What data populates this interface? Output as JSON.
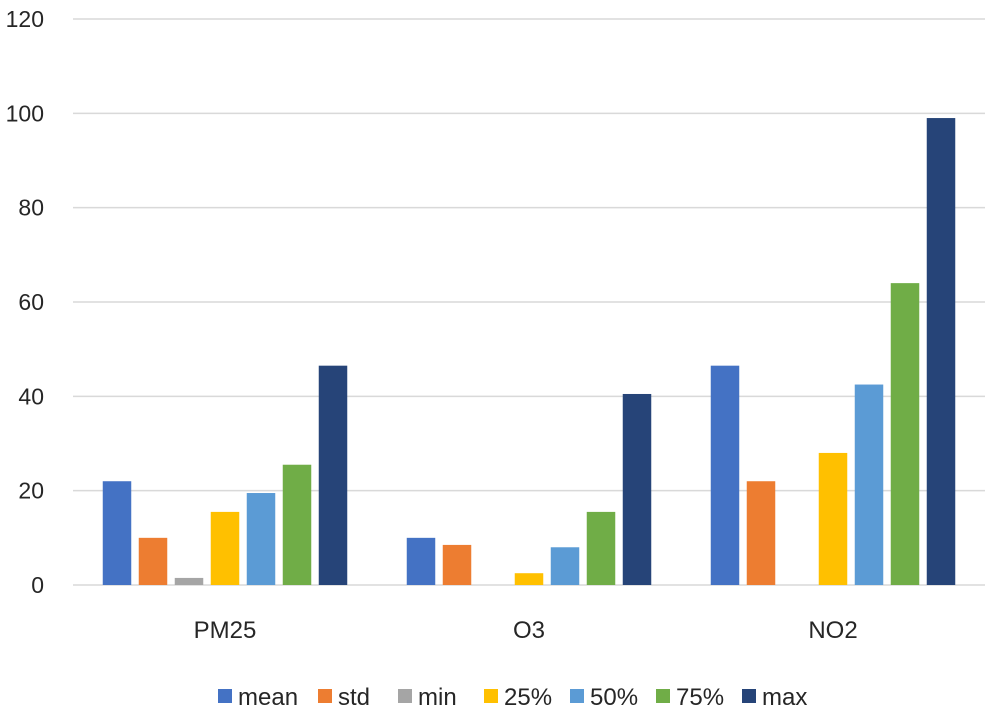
{
  "chart_data": {
    "type": "bar",
    "title": "",
    "xlabel": "",
    "ylabel": "",
    "ylim": [
      0,
      120
    ],
    "yticks": [
      0,
      20,
      40,
      60,
      80,
      100,
      120
    ],
    "grid": true,
    "legend_position": "bottom",
    "categories": [
      "PM25",
      "O3",
      "NO2"
    ],
    "series": [
      {
        "name": "mean",
        "color": "#4472c4",
        "values": [
          22,
          10,
          46.5
        ]
      },
      {
        "name": "std",
        "color": "#ed7d31",
        "values": [
          10,
          8.5,
          22
        ]
      },
      {
        "name": "min",
        "color": "#a5a5a5",
        "values": [
          1.5,
          0,
          0
        ]
      },
      {
        "name": "25%",
        "color": "#ffc000",
        "values": [
          15.5,
          2.5,
          28
        ]
      },
      {
        "name": "50%",
        "color": "#5b9bd5",
        "values": [
          19.5,
          8,
          42.5
        ]
      },
      {
        "name": "75%",
        "color": "#70ad47",
        "values": [
          25.5,
          15.5,
          64
        ]
      },
      {
        "name": "max",
        "color": "#264478",
        "values": [
          46.5,
          40.5,
          99
        ]
      }
    ]
  }
}
